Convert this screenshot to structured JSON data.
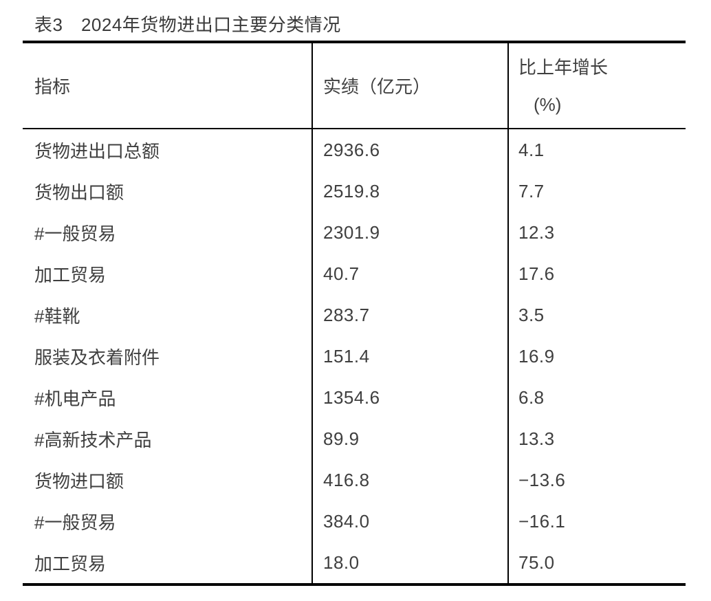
{
  "title": "表3　2024年货物进出口主要分类情况",
  "table": {
    "columns": [
      {
        "label": "指标"
      },
      {
        "label": "实绩（亿元）"
      },
      {
        "label_line1": "比上年增长",
        "label_line2": "(%)"
      }
    ],
    "rows": [
      {
        "indicator": "货物进出口总额",
        "value": "2936.6",
        "growth": "4.1"
      },
      {
        "indicator": "货物出口额",
        "value": "2519.8",
        "growth": "7.7"
      },
      {
        "indicator": "#一般贸易",
        "value": "2301.9",
        "growth": "12.3"
      },
      {
        "indicator": "加工贸易",
        "value": "40.7",
        "growth": "17.6"
      },
      {
        "indicator": "#鞋靴",
        "value": "283.7",
        "growth": "3.5"
      },
      {
        "indicator": "服装及衣着附件",
        "value": "151.4",
        "growth": "16.9"
      },
      {
        "indicator": "#机电产品",
        "value": "1354.6",
        "growth": "6.8"
      },
      {
        "indicator": "#高新技术产品",
        "value": "89.9",
        "growth": "13.3"
      },
      {
        "indicator": "货物进口额",
        "value": "416.8",
        "growth": "−13.6"
      },
      {
        "indicator": "#一般贸易",
        "value": "384.0",
        "growth": "−16.1"
      },
      {
        "indicator": "加工贸易",
        "value": "18.0",
        "growth": "75.0"
      }
    ]
  },
  "colors": {
    "background": "#ffffff",
    "text": "#3f3f3f",
    "border": "#000000"
  }
}
